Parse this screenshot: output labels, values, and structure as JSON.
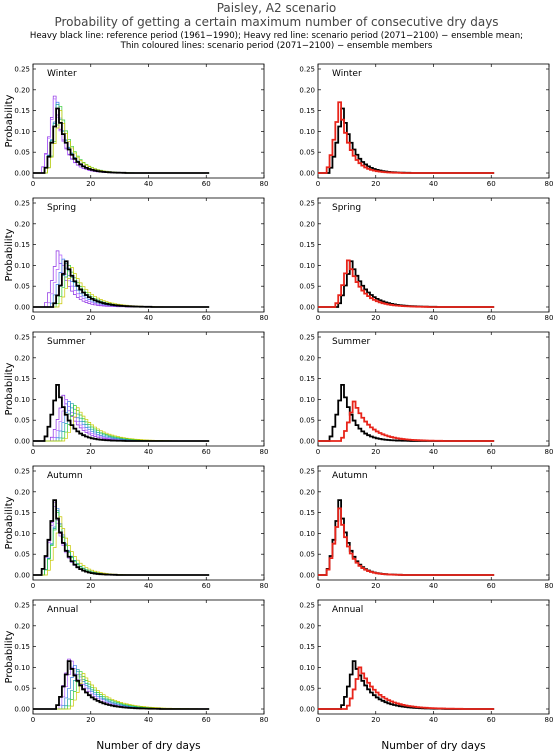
{
  "header": {
    "title": "Paisley, A2 scenario",
    "subtitle": "Probability of getting a certain maximum number of consecutive dry days",
    "caption_line1": "Heavy black line: reference period (1961−1990); Heavy red line: scenario period (2071−2100) − ensemble mean;",
    "caption_line2": "Thin coloured lines: scenario period (2071−2100) − ensemble members"
  },
  "axes": {
    "ylabel": "Probability",
    "xlabel": "Number of dry days",
    "xlim": [
      0,
      80
    ],
    "xticks": [
      0,
      20,
      40,
      60,
      80
    ],
    "ylim": [
      0,
      0.25
    ],
    "yticks": [
      "0.00",
      "0.05",
      "0.10",
      "0.15",
      "0.20",
      "0.25"
    ]
  },
  "colors": {
    "reference": "#000000",
    "ensemble_mean": "#e8241a",
    "members": [
      "#8a2be2",
      "#b060ff",
      "#3c7de6",
      "#1aa3a3",
      "#32cd32",
      "#c8c800"
    ]
  },
  "chart_data": [
    {
      "type": "line",
      "panel": "Winter",
      "column": "left",
      "step": true,
      "series": [
        {
          "role": "reference",
          "peak_x": 8,
          "peak_y": 0.155
        },
        {
          "role": "member",
          "peak_x": 7,
          "peak_y": 0.185
        },
        {
          "role": "member",
          "peak_x": 7,
          "peak_y": 0.178
        },
        {
          "role": "member",
          "peak_x": 8,
          "peak_y": 0.17
        },
        {
          "role": "member",
          "peak_x": 8,
          "peak_y": 0.165
        },
        {
          "role": "member",
          "peak_x": 9,
          "peak_y": 0.16
        },
        {
          "role": "member",
          "peak_x": 9,
          "peak_y": 0.15
        }
      ]
    },
    {
      "type": "line",
      "panel": "Winter",
      "column": "right",
      "step": true,
      "series": [
        {
          "role": "reference",
          "peak_x": 8,
          "peak_y": 0.155
        },
        {
          "role": "ensemble_mean",
          "peak_x": 7,
          "peak_y": 0.17
        }
      ]
    },
    {
      "type": "line",
      "panel": "Spring",
      "column": "left",
      "step": true,
      "series": [
        {
          "role": "reference",
          "peak_x": 11,
          "peak_y": 0.11
        },
        {
          "role": "member",
          "peak_x": 8,
          "peak_y": 0.135
        },
        {
          "role": "member",
          "peak_x": 9,
          "peak_y": 0.125
        },
        {
          "role": "member",
          "peak_x": 10,
          "peak_y": 0.115
        },
        {
          "role": "member",
          "peak_x": 11,
          "peak_y": 0.105
        },
        {
          "role": "member",
          "peak_x": 12,
          "peak_y": 0.1
        },
        {
          "role": "member",
          "peak_x": 13,
          "peak_y": 0.095
        }
      ]
    },
    {
      "type": "line",
      "panel": "Spring",
      "column": "right",
      "step": true,
      "series": [
        {
          "role": "reference",
          "peak_x": 11,
          "peak_y": 0.11
        },
        {
          "role": "ensemble_mean",
          "peak_x": 10,
          "peak_y": 0.112
        }
      ]
    },
    {
      "type": "line",
      "panel": "Summer",
      "column": "left",
      "step": true,
      "series": [
        {
          "role": "reference",
          "peak_x": 8,
          "peak_y": 0.135
        },
        {
          "role": "member",
          "peak_x": 10,
          "peak_y": 0.11
        },
        {
          "role": "member",
          "peak_x": 11,
          "peak_y": 0.1
        },
        {
          "role": "member",
          "peak_x": 12,
          "peak_y": 0.095
        },
        {
          "role": "member",
          "peak_x": 13,
          "peak_y": 0.09
        },
        {
          "role": "member",
          "peak_x": 14,
          "peak_y": 0.085
        },
        {
          "role": "member",
          "peak_x": 15,
          "peak_y": 0.08
        }
      ]
    },
    {
      "type": "line",
      "panel": "Summer",
      "column": "right",
      "step": true,
      "series": [
        {
          "role": "reference",
          "peak_x": 8,
          "peak_y": 0.135
        },
        {
          "role": "ensemble_mean",
          "peak_x": 12,
          "peak_y": 0.095
        }
      ]
    },
    {
      "type": "line",
      "panel": "Autumn",
      "column": "left",
      "step": true,
      "series": [
        {
          "role": "reference",
          "peak_x": 7,
          "peak_y": 0.18
        },
        {
          "role": "member",
          "peak_x": 7,
          "peak_y": 0.175
        },
        {
          "role": "member",
          "peak_x": 7,
          "peak_y": 0.165
        },
        {
          "role": "member",
          "peak_x": 8,
          "peak_y": 0.16
        },
        {
          "role": "member",
          "peak_x": 8,
          "peak_y": 0.155
        },
        {
          "role": "member",
          "peak_x": 8,
          "peak_y": 0.15
        },
        {
          "role": "member",
          "peak_x": 9,
          "peak_y": 0.14
        }
      ]
    },
    {
      "type": "line",
      "panel": "Autumn",
      "column": "right",
      "step": true,
      "series": [
        {
          "role": "reference",
          "peak_x": 7,
          "peak_y": 0.18
        },
        {
          "role": "ensemble_mean",
          "peak_x": 7,
          "peak_y": 0.16
        }
      ]
    },
    {
      "type": "line",
      "panel": "Annual",
      "column": "left",
      "step": true,
      "series": [
        {
          "role": "reference",
          "peak_x": 12,
          "peak_y": 0.115
        },
        {
          "role": "member",
          "peak_x": 12,
          "peak_y": 0.12
        },
        {
          "role": "member",
          "peak_x": 13,
          "peak_y": 0.115
        },
        {
          "role": "member",
          "peak_x": 14,
          "peak_y": 0.105
        },
        {
          "role": "member",
          "peak_x": 15,
          "peak_y": 0.095
        },
        {
          "role": "member",
          "peak_x": 16,
          "peak_y": 0.09
        },
        {
          "role": "member",
          "peak_x": 17,
          "peak_y": 0.085
        }
      ]
    },
    {
      "type": "line",
      "panel": "Annual",
      "column": "right",
      "step": true,
      "series": [
        {
          "role": "reference",
          "peak_x": 12,
          "peak_y": 0.115
        },
        {
          "role": "ensemble_mean",
          "peak_x": 14,
          "peak_y": 0.1
        }
      ]
    }
  ]
}
